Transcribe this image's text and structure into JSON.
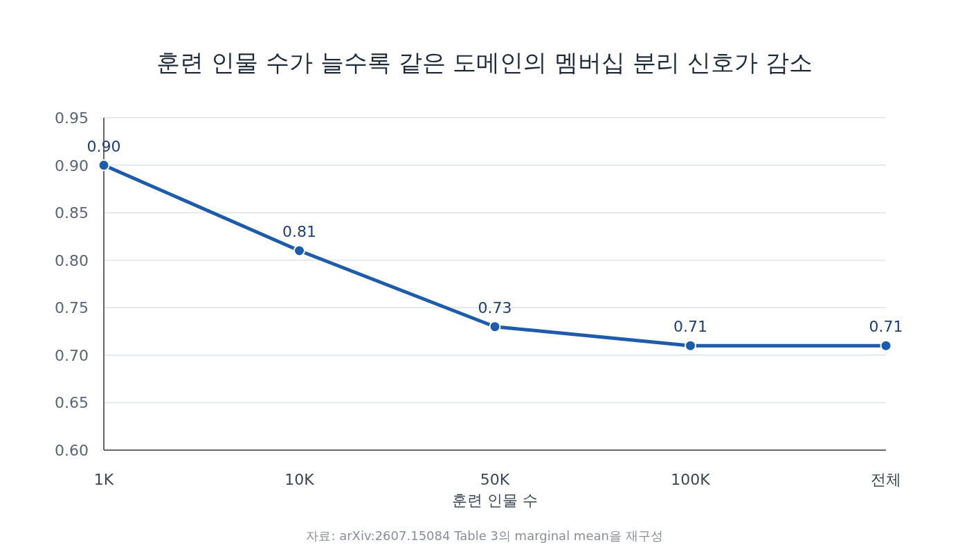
{
  "chart_data": {
    "type": "line",
    "title": "훈련 인물 수가 늘수록 같은 도메인의 멤버십 분리 신호가 감소",
    "xlabel": "훈련 인물 수",
    "categories": [
      "1K",
      "10K",
      "50K",
      "100K",
      "전체"
    ],
    "values": [
      0.9,
      0.81,
      0.73,
      0.71,
      0.71
    ],
    "value_labels": [
      "0.90",
      "0.81",
      "0.73",
      "0.71",
      "0.71"
    ],
    "color": "#1f5bab",
    "ylim": [
      0.6,
      0.95
    ],
    "yticks": [
      {
        "value": 0.6,
        "label": "0.60"
      },
      {
        "value": 0.65,
        "label": "0.65"
      },
      {
        "value": 0.7,
        "label": "0.70"
      },
      {
        "value": 0.75,
        "label": "0.75"
      },
      {
        "value": 0.8,
        "label": "0.80"
      },
      {
        "value": 0.85,
        "label": "0.85"
      },
      {
        "value": 0.9,
        "label": "0.90"
      },
      {
        "value": 0.95,
        "label": "0.95"
      }
    ],
    "grid": "y",
    "marker": "circle",
    "line_style": "solid",
    "annotations": [
      "자료: arXiv:2607.15084 Table 3의 marginal mean을 재구성"
    ]
  }
}
